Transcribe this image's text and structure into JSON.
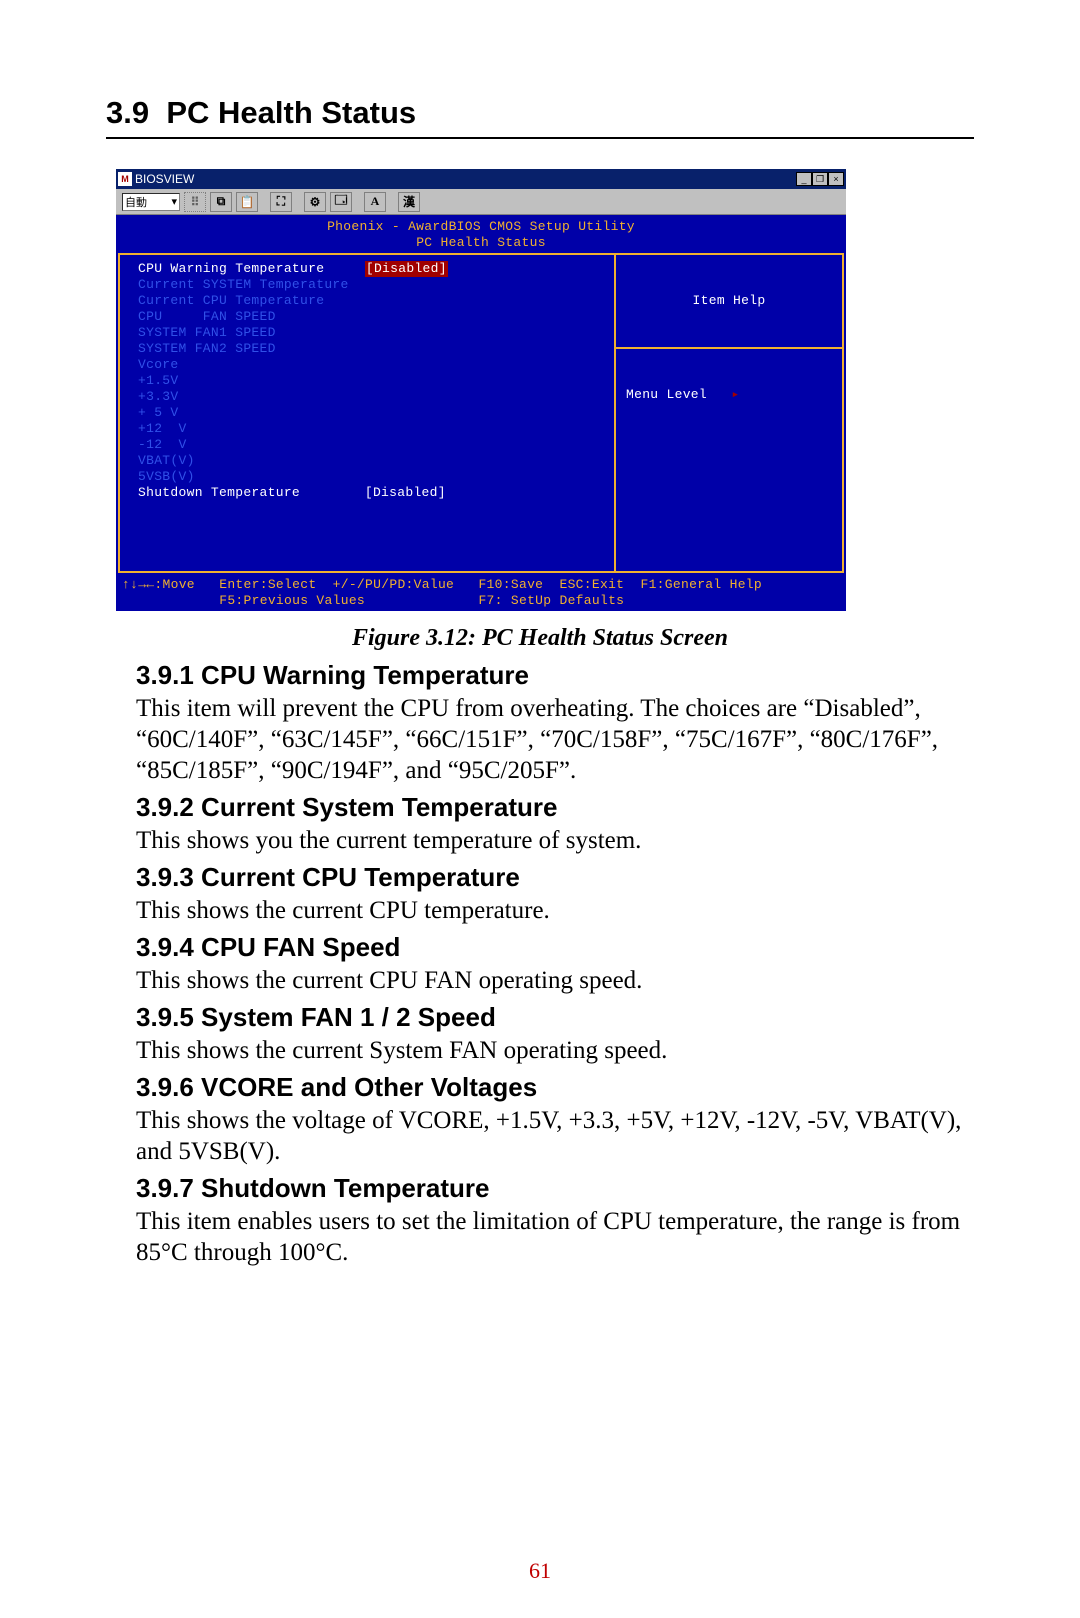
{
  "section": {
    "number": "3.9",
    "title": "PC Health Status"
  },
  "window": {
    "title": "BIOSVIEW",
    "minimize": "_",
    "maximize": "❐",
    "close": "×",
    "toolbar_select": "自動",
    "toolbar_select_arrow": "▾",
    "tb_a": "A",
    "tb_k": "漢"
  },
  "bios": {
    "header_line1": "Phoenix - AwardBIOS CMOS Setup Utility",
    "header_line2": "PC Health Status",
    "rows": [
      {
        "label": "CPU Warning Temperature",
        "value": "[Disabled]",
        "selected": true,
        "dim": false
      },
      {
        "label": "Current SYSTEM Temperature",
        "value": "",
        "selected": false,
        "dim": true
      },
      {
        "label": "Current CPU Temperature",
        "value": "",
        "selected": false,
        "dim": true
      },
      {
        "label": "CPU     FAN SPEED",
        "value": "",
        "selected": false,
        "dim": true
      },
      {
        "label": "SYSTEM FAN1 SPEED",
        "value": "",
        "selected": false,
        "dim": true
      },
      {
        "label": "SYSTEM FAN2 SPEED",
        "value": "",
        "selected": false,
        "dim": true
      },
      {
        "label": "Vcore",
        "value": "",
        "selected": false,
        "dim": true
      },
      {
        "label": "+1.5V",
        "value": "",
        "selected": false,
        "dim": true
      },
      {
        "label": "+3.3V",
        "value": "",
        "selected": false,
        "dim": true
      },
      {
        "label": "+ 5 V",
        "value": "",
        "selected": false,
        "dim": true
      },
      {
        "label": "+12  V",
        "value": "",
        "selected": false,
        "dim": true
      },
      {
        "label": "-12  V",
        "value": "",
        "selected": false,
        "dim": true
      },
      {
        "label": "VBAT(V)",
        "value": "",
        "selected": false,
        "dim": true
      },
      {
        "label": "5VSB(V)",
        "value": "",
        "selected": false,
        "dim": true
      },
      {
        "label": "Shutdown Temperature",
        "value": "[Disabled]",
        "selected": false,
        "dim": false
      }
    ],
    "right": {
      "title": "Item Help",
      "menu_level_label": "Menu Level",
      "menu_level_arrow": "▸"
    },
    "footer1": "↑↓→←:Move   Enter:Select  +/-/PU/PD:Value   F10:Save  ESC:Exit  F1:General Help",
    "footer2": "            F5:Previous Values              F7: SetUp Defaults"
  },
  "figure": {
    "caption": "Figure 3.12: PC Health Status Screen"
  },
  "subs": [
    {
      "head": "3.9.1 CPU Warning Temperature",
      "body": "This item will prevent the CPU from overheating. The choices are “Disabled”, “60C/140F”, “63C/145F”, “66C/151F”, “70C/158F”, “75C/167F”, “80C/176F”, “85C/185F”, “90C/194F”, and “95C/205F”."
    },
    {
      "head": "3.9.2 Current System Temperature",
      "body": "This shows you the current temperature of system."
    },
    {
      "head": "3.9.3 Current CPU Temperature",
      "body": "This shows the current CPU temperature."
    },
    {
      "head": "3.9.4 CPU FAN Speed",
      "body": "This shows the current CPU FAN operating speed."
    },
    {
      "head": "3.9.5 System FAN 1 / 2 Speed",
      "body": "This shows the current System FAN operating speed."
    },
    {
      "head": "3.9.6 VCORE and Other Voltages",
      "body": "This shows the voltage of VCORE, +1.5V, +3.3, +5V, +12V, -12V, -5V, VBAT(V), and 5VSB(V)."
    },
    {
      "head": "3.9.7 Shutdown Temperature",
      "body": "This item enables users to set the limitation of CPU temperature, the range is from 85°C through 100°C."
    }
  ],
  "page_number": "61",
  "colors": {
    "bios_bg": "#0000a8",
    "bios_gold": "#f0b030",
    "bios_dim": "#3050e8",
    "bios_sel_bg": "#a00000",
    "win_title_bg": "#08216b",
    "toolbar_bg": "#c0c0c0",
    "pagenum_color": "#c00000"
  }
}
